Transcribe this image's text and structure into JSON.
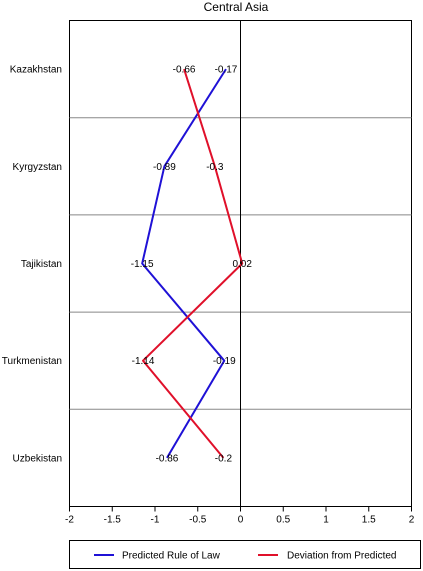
{
  "chart_data": {
    "type": "line",
    "title": "Central Asia",
    "orientation": "horizontal",
    "categories": [
      "Kazakhstan",
      "Kyrgyzstan",
      "Tajikistan",
      "Turkmenistan",
      "Uzbekistan"
    ],
    "series": [
      {
        "name": "Predicted Rule of Law",
        "color": "#1f11d6",
        "values": [
          -0.17,
          -0.89,
          -1.15,
          -0.19,
          -0.86
        ],
        "labels": [
          "-0.17",
          "-0.89",
          "-1.15",
          "-0.19",
          "-0.86"
        ]
      },
      {
        "name": "Deviation from Predicted",
        "color": "#e0102a",
        "values": [
          -0.66,
          -0.3,
          0.02,
          -1.14,
          -0.2
        ],
        "labels": [
          "-0.66",
          "-0.3",
          "0.02",
          "-1.14",
          "-0.2"
        ]
      }
    ],
    "xlim": [
      -2,
      2
    ],
    "xticks": [
      -2,
      -1.5,
      -1,
      -0.5,
      0,
      0.5,
      1,
      1.5,
      2
    ],
    "xtick_labels": [
      "-2",
      "-1.5",
      "-1",
      "-0.5",
      "0",
      "0.5",
      "1",
      "1.5",
      "2"
    ],
    "xlabel": "",
    "ylabel": "",
    "grid": "horizontal separators between categories",
    "legend_position": "bottom"
  }
}
